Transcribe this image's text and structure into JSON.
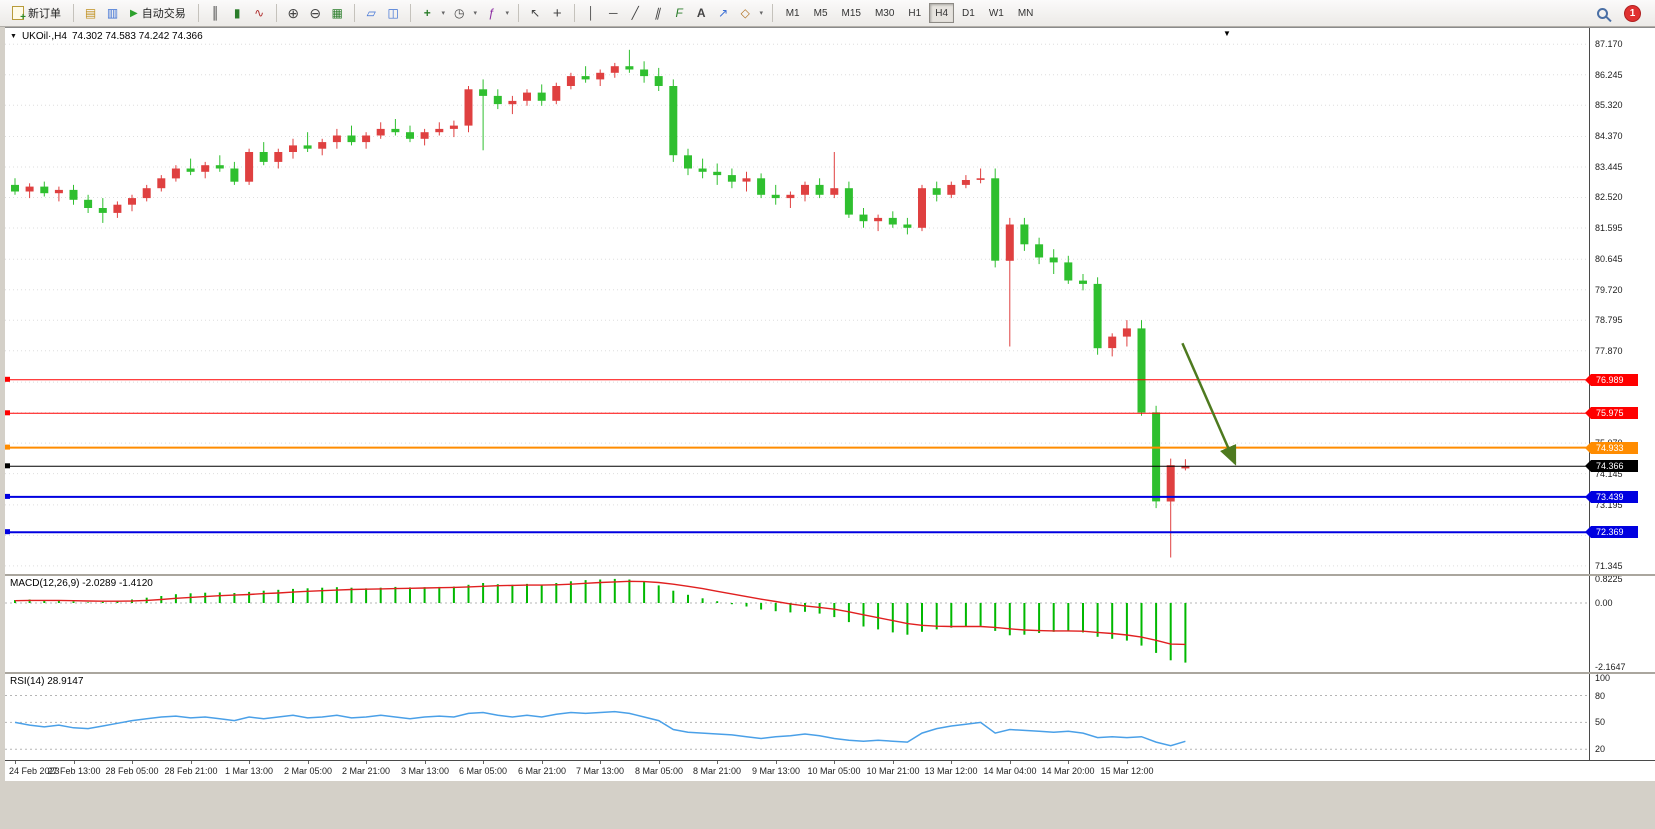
{
  "toolbar": {
    "new_order_label": "新订单",
    "autotrade_label": "自动交易",
    "timeframes": [
      "M1",
      "M5",
      "M15",
      "M30",
      "H1",
      "H4",
      "D1",
      "W1",
      "MN"
    ],
    "active_timeframe": "H4",
    "notification_count": "1"
  },
  "icons": {
    "dropdown_triangle": "▼",
    "shift_marker": "▼",
    "charts": "▤",
    "profiles": "▥",
    "autotrade_play": "▶",
    "bar_chart": "║",
    "candle_chart": "▮",
    "line_chart": "∿",
    "zoom_in": "⊕",
    "zoom_out": "⊖",
    "tile_windows": "▦",
    "cascade_windows": "▱",
    "arrange_windows": "◫",
    "new_chart": "+",
    "period": "◷",
    "indicators": "ƒ",
    "cursor": "↖",
    "crosshair": "+",
    "vline": "│",
    "hline": "─",
    "trendline": "╱",
    "channel": "∥",
    "fibonacci": "F",
    "text_tool": "A",
    "arrow_tool": "↗",
    "shapes": "◇",
    "caret": "▾"
  },
  "chart_header": {
    "symbol": "UKOil·,H4",
    "ohlc": "74.302 74.583 74.242 74.366"
  },
  "indicators": {
    "macd_label": "MACD(12,26,9) -2.0289 -1.4120",
    "rsi_label": "RSI(14) 28.9147"
  },
  "chart_data": {
    "type": "candlestick",
    "symbol": "UKOil",
    "timeframe": "H4",
    "quote": {
      "open": 74.302,
      "high": 74.583,
      "low": 74.242,
      "close": 74.366
    },
    "colors": {
      "up": "#df4040",
      "down": "#2fbf2f",
      "macd_hist": "#00b800",
      "macd_signal": "#e02020",
      "rsi_line": "#4aa0e8",
      "grid": "#dedede"
    },
    "price_range": [
      71.1,
      87.66
    ],
    "price_axis": [
      "87.170",
      "86.245",
      "85.320",
      "84.370",
      "83.445",
      "82.520",
      "81.595",
      "80.645",
      "79.720",
      "78.795",
      "77.870",
      "76.920",
      "75.995",
      "75.070",
      "74.145",
      "73.195",
      "72.270",
      "71.345"
    ],
    "hlines": [
      {
        "price": 76.989,
        "color": "#ff0000",
        "width": 1,
        "label": "76.989"
      },
      {
        "price": 75.975,
        "color": "#ff0000",
        "width": 1,
        "label": "75.975"
      },
      {
        "price": 74.933,
        "color": "#ff8c00",
        "width": 2,
        "label": "74.933"
      },
      {
        "price": 74.366,
        "color": "#000000",
        "width": 1,
        "label": "74.366"
      },
      {
        "price": 73.439,
        "color": "#0000e0",
        "width": 2,
        "label": "73.439"
      },
      {
        "price": 72.369,
        "color": "#0000e0",
        "width": 2,
        "label": "72.369"
      }
    ],
    "arrow": {
      "from_bar": 79.8,
      "from_price": 78.1,
      "to_bar": 83.4,
      "to_price": 74.45,
      "color": "#4e7a1f"
    },
    "candles": [
      [
        82.9,
        83.1,
        82.6,
        82.7
      ],
      [
        82.7,
        82.95,
        82.5,
        82.85
      ],
      [
        82.85,
        83.0,
        82.55,
        82.65
      ],
      [
        82.65,
        82.85,
        82.4,
        82.75
      ],
      [
        82.75,
        82.9,
        82.3,
        82.45
      ],
      [
        82.45,
        82.6,
        82.05,
        82.2
      ],
      [
        82.2,
        82.5,
        81.75,
        82.05
      ],
      [
        82.05,
        82.4,
        81.9,
        82.3
      ],
      [
        82.3,
        82.6,
        82.1,
        82.5
      ],
      [
        82.5,
        82.9,
        82.4,
        82.8
      ],
      [
        82.8,
        83.2,
        82.7,
        83.1
      ],
      [
        83.1,
        83.5,
        83.0,
        83.4
      ],
      [
        83.4,
        83.7,
        83.2,
        83.3
      ],
      [
        83.3,
        83.6,
        83.1,
        83.5
      ],
      [
        83.5,
        83.8,
        83.3,
        83.4
      ],
      [
        83.4,
        83.6,
        82.9,
        83.0
      ],
      [
        83.0,
        84.0,
        82.9,
        83.9
      ],
      [
        83.9,
        84.2,
        83.5,
        83.6
      ],
      [
        83.6,
        84.0,
        83.4,
        83.9
      ],
      [
        83.9,
        84.3,
        83.7,
        84.1
      ],
      [
        84.1,
        84.5,
        83.9,
        84.0
      ],
      [
        84.0,
        84.3,
        83.8,
        84.2
      ],
      [
        84.2,
        84.6,
        84.0,
        84.4
      ],
      [
        84.4,
        84.7,
        84.1,
        84.2
      ],
      [
        84.2,
        84.5,
        84.0,
        84.4
      ],
      [
        84.4,
        84.8,
        84.3,
        84.6
      ],
      [
        84.6,
        84.9,
        84.4,
        84.5
      ],
      [
        84.5,
        84.7,
        84.2,
        84.3
      ],
      [
        84.3,
        84.6,
        84.1,
        84.5
      ],
      [
        84.5,
        84.8,
        84.4,
        84.6
      ],
      [
        84.6,
        84.85,
        84.35,
        84.7
      ],
      [
        84.7,
        85.9,
        84.5,
        85.8
      ],
      [
        85.8,
        86.1,
        83.95,
        85.6
      ],
      [
        85.6,
        85.8,
        85.2,
        85.35
      ],
      [
        85.35,
        85.6,
        85.05,
        85.45
      ],
      [
        85.45,
        85.8,
        85.3,
        85.7
      ],
      [
        85.7,
        85.95,
        85.3,
        85.45
      ],
      [
        85.45,
        86.0,
        85.35,
        85.9
      ],
      [
        85.9,
        86.3,
        85.8,
        86.2
      ],
      [
        86.2,
        86.5,
        86.0,
        86.1
      ],
      [
        86.1,
        86.4,
        85.9,
        86.3
      ],
      [
        86.3,
        86.6,
        86.15,
        86.5
      ],
      [
        86.5,
        87.0,
        86.3,
        86.4
      ],
      [
        86.4,
        86.65,
        86.0,
        86.2
      ],
      [
        86.2,
        86.45,
        85.75,
        85.9
      ],
      [
        85.9,
        86.1,
        83.6,
        83.8
      ],
      [
        83.8,
        84.0,
        83.2,
        83.4
      ],
      [
        83.4,
        83.7,
        83.1,
        83.3
      ],
      [
        83.3,
        83.55,
        82.9,
        83.2
      ],
      [
        83.2,
        83.4,
        82.8,
        83.0
      ],
      [
        83.0,
        83.3,
        82.7,
        83.1
      ],
      [
        83.1,
        83.25,
        82.5,
        82.6
      ],
      [
        82.6,
        82.9,
        82.3,
        82.5
      ],
      [
        82.5,
        82.7,
        82.2,
        82.6
      ],
      [
        82.6,
        83.0,
        82.4,
        82.9
      ],
      [
        82.9,
        83.1,
        82.5,
        82.6
      ],
      [
        82.6,
        83.9,
        82.5,
        82.8
      ],
      [
        82.8,
        83.0,
        81.9,
        82.0
      ],
      [
        82.0,
        82.2,
        81.6,
        81.8
      ],
      [
        81.8,
        82.0,
        81.5,
        81.9
      ],
      [
        81.9,
        82.1,
        81.6,
        81.7
      ],
      [
        81.7,
        81.9,
        81.4,
        81.6
      ],
      [
        81.6,
        82.9,
        81.5,
        82.8
      ],
      [
        82.8,
        83.0,
        82.4,
        82.6
      ],
      [
        82.6,
        83.0,
        82.5,
        82.9
      ],
      [
        82.9,
        83.2,
        82.8,
        83.05
      ],
      [
        83.05,
        83.4,
        82.95,
        83.1
      ],
      [
        83.1,
        83.4,
        80.4,
        80.6
      ],
      [
        80.6,
        81.9,
        78.0,
        81.7
      ],
      [
        81.7,
        81.9,
        80.9,
        81.1
      ],
      [
        81.1,
        81.3,
        80.5,
        80.7
      ],
      [
        80.7,
        80.95,
        80.2,
        80.55
      ],
      [
        80.55,
        80.75,
        79.9,
        80.0
      ],
      [
        80.0,
        80.2,
        79.7,
        79.9
      ],
      [
        79.9,
        80.1,
        77.75,
        77.95
      ],
      [
        77.95,
        78.4,
        77.7,
        78.3
      ],
      [
        78.3,
        78.8,
        78.0,
        78.55
      ],
      [
        78.55,
        78.8,
        75.9,
        76.0
      ],
      [
        76.0,
        76.2,
        73.1,
        73.3
      ],
      [
        73.3,
        74.6,
        71.6,
        74.4
      ],
      [
        74.302,
        74.583,
        74.242,
        74.366
      ]
    ],
    "macd": {
      "range": [
        -2.35,
        0.92
      ],
      "axis": [
        "0.8225",
        "0.00",
        "-2.1647"
      ],
      "hist": [
        0.1,
        0.12,
        0.1,
        0.08,
        0.05,
        0.02,
        0.04,
        0.08,
        0.12,
        0.18,
        0.24,
        0.3,
        0.33,
        0.35,
        0.36,
        0.34,
        0.38,
        0.42,
        0.45,
        0.48,
        0.5,
        0.52,
        0.54,
        0.52,
        0.5,
        0.52,
        0.55,
        0.53,
        0.54,
        0.55,
        0.56,
        0.62,
        0.68,
        0.64,
        0.62,
        0.65,
        0.63,
        0.68,
        0.74,
        0.78,
        0.8,
        0.82,
        0.8,
        0.72,
        0.6,
        0.42,
        0.28,
        0.16,
        0.06,
        -0.04,
        -0.12,
        -0.22,
        -0.28,
        -0.32,
        -0.3,
        -0.36,
        -0.48,
        -0.65,
        -0.8,
        -0.9,
        -1.0,
        -1.08,
        -0.98,
        -0.9,
        -0.84,
        -0.8,
        -0.78,
        -0.95,
        -1.1,
        -1.08,
        -1.02,
        -0.98,
        -0.96,
        -1.0,
        -1.15,
        -1.22,
        -1.28,
        -1.45,
        -1.7,
        -1.95,
        -2.03
      ],
      "signal": [
        0.08,
        0.09,
        0.09,
        0.09,
        0.08,
        0.07,
        0.06,
        0.06,
        0.07,
        0.09,
        0.12,
        0.16,
        0.19,
        0.22,
        0.25,
        0.27,
        0.29,
        0.32,
        0.34,
        0.37,
        0.4,
        0.42,
        0.44,
        0.46,
        0.47,
        0.48,
        0.49,
        0.5,
        0.51,
        0.52,
        0.53,
        0.55,
        0.57,
        0.59,
        0.6,
        0.61,
        0.61,
        0.62,
        0.64,
        0.67,
        0.7,
        0.72,
        0.74,
        0.73,
        0.7,
        0.64,
        0.57,
        0.49,
        0.4,
        0.31,
        0.22,
        0.13,
        0.05,
        -0.03,
        -0.1,
        -0.15,
        -0.21,
        -0.3,
        -0.4,
        -0.5,
        -0.6,
        -0.7,
        -0.76,
        -0.79,
        -0.8,
        -0.8,
        -0.8,
        -0.83,
        -0.88,
        -0.92,
        -0.94,
        -0.95,
        -0.95,
        -0.96,
        -1.0,
        -1.04,
        -1.09,
        -1.16,
        -1.27,
        -1.4,
        -1.41
      ]
    },
    "rsi": {
      "range": [
        8,
        104
      ],
      "axis": [
        "100",
        "80",
        "50",
        "20"
      ],
      "levels": [
        80,
        50,
        20
      ],
      "values": [
        50,
        47,
        45,
        47,
        44,
        43,
        46,
        49,
        52,
        54,
        56,
        57,
        55,
        56,
        54,
        52,
        56,
        54,
        56,
        58,
        55,
        56,
        58,
        55,
        56,
        58,
        56,
        54,
        56,
        57,
        56,
        60,
        61,
        58,
        56,
        58,
        56,
        59,
        61,
        60,
        61,
        62,
        60,
        56,
        52,
        42,
        39,
        38,
        37,
        36,
        34,
        32,
        34,
        35,
        37,
        35,
        32,
        30,
        29,
        30,
        29,
        28,
        38,
        43,
        46,
        48,
        50,
        38,
        42,
        41,
        40,
        39,
        40,
        38,
        33,
        34,
        33,
        34,
        28,
        24,
        28.9
      ]
    },
    "time_labels": [
      "24 Feb 2023",
      "27 Feb 13:00",
      "28 Feb 05:00",
      "28 Feb 21:00",
      "1 Mar 13:00",
      "2 Mar 05:00",
      "2 Mar 21:00",
      "3 Mar 13:00",
      "6 Mar 05:00",
      "6 Mar 21:00",
      "7 Mar 13:00",
      "8 Mar 05:00",
      "8 Mar 21:00",
      "9 Mar 13:00",
      "10 Mar 05:00",
      "10 Mar 21:00",
      "13 Mar 12:00",
      "14 Mar 04:00",
      "14 Mar 20:00",
      "15 Mar 12:00"
    ]
  }
}
